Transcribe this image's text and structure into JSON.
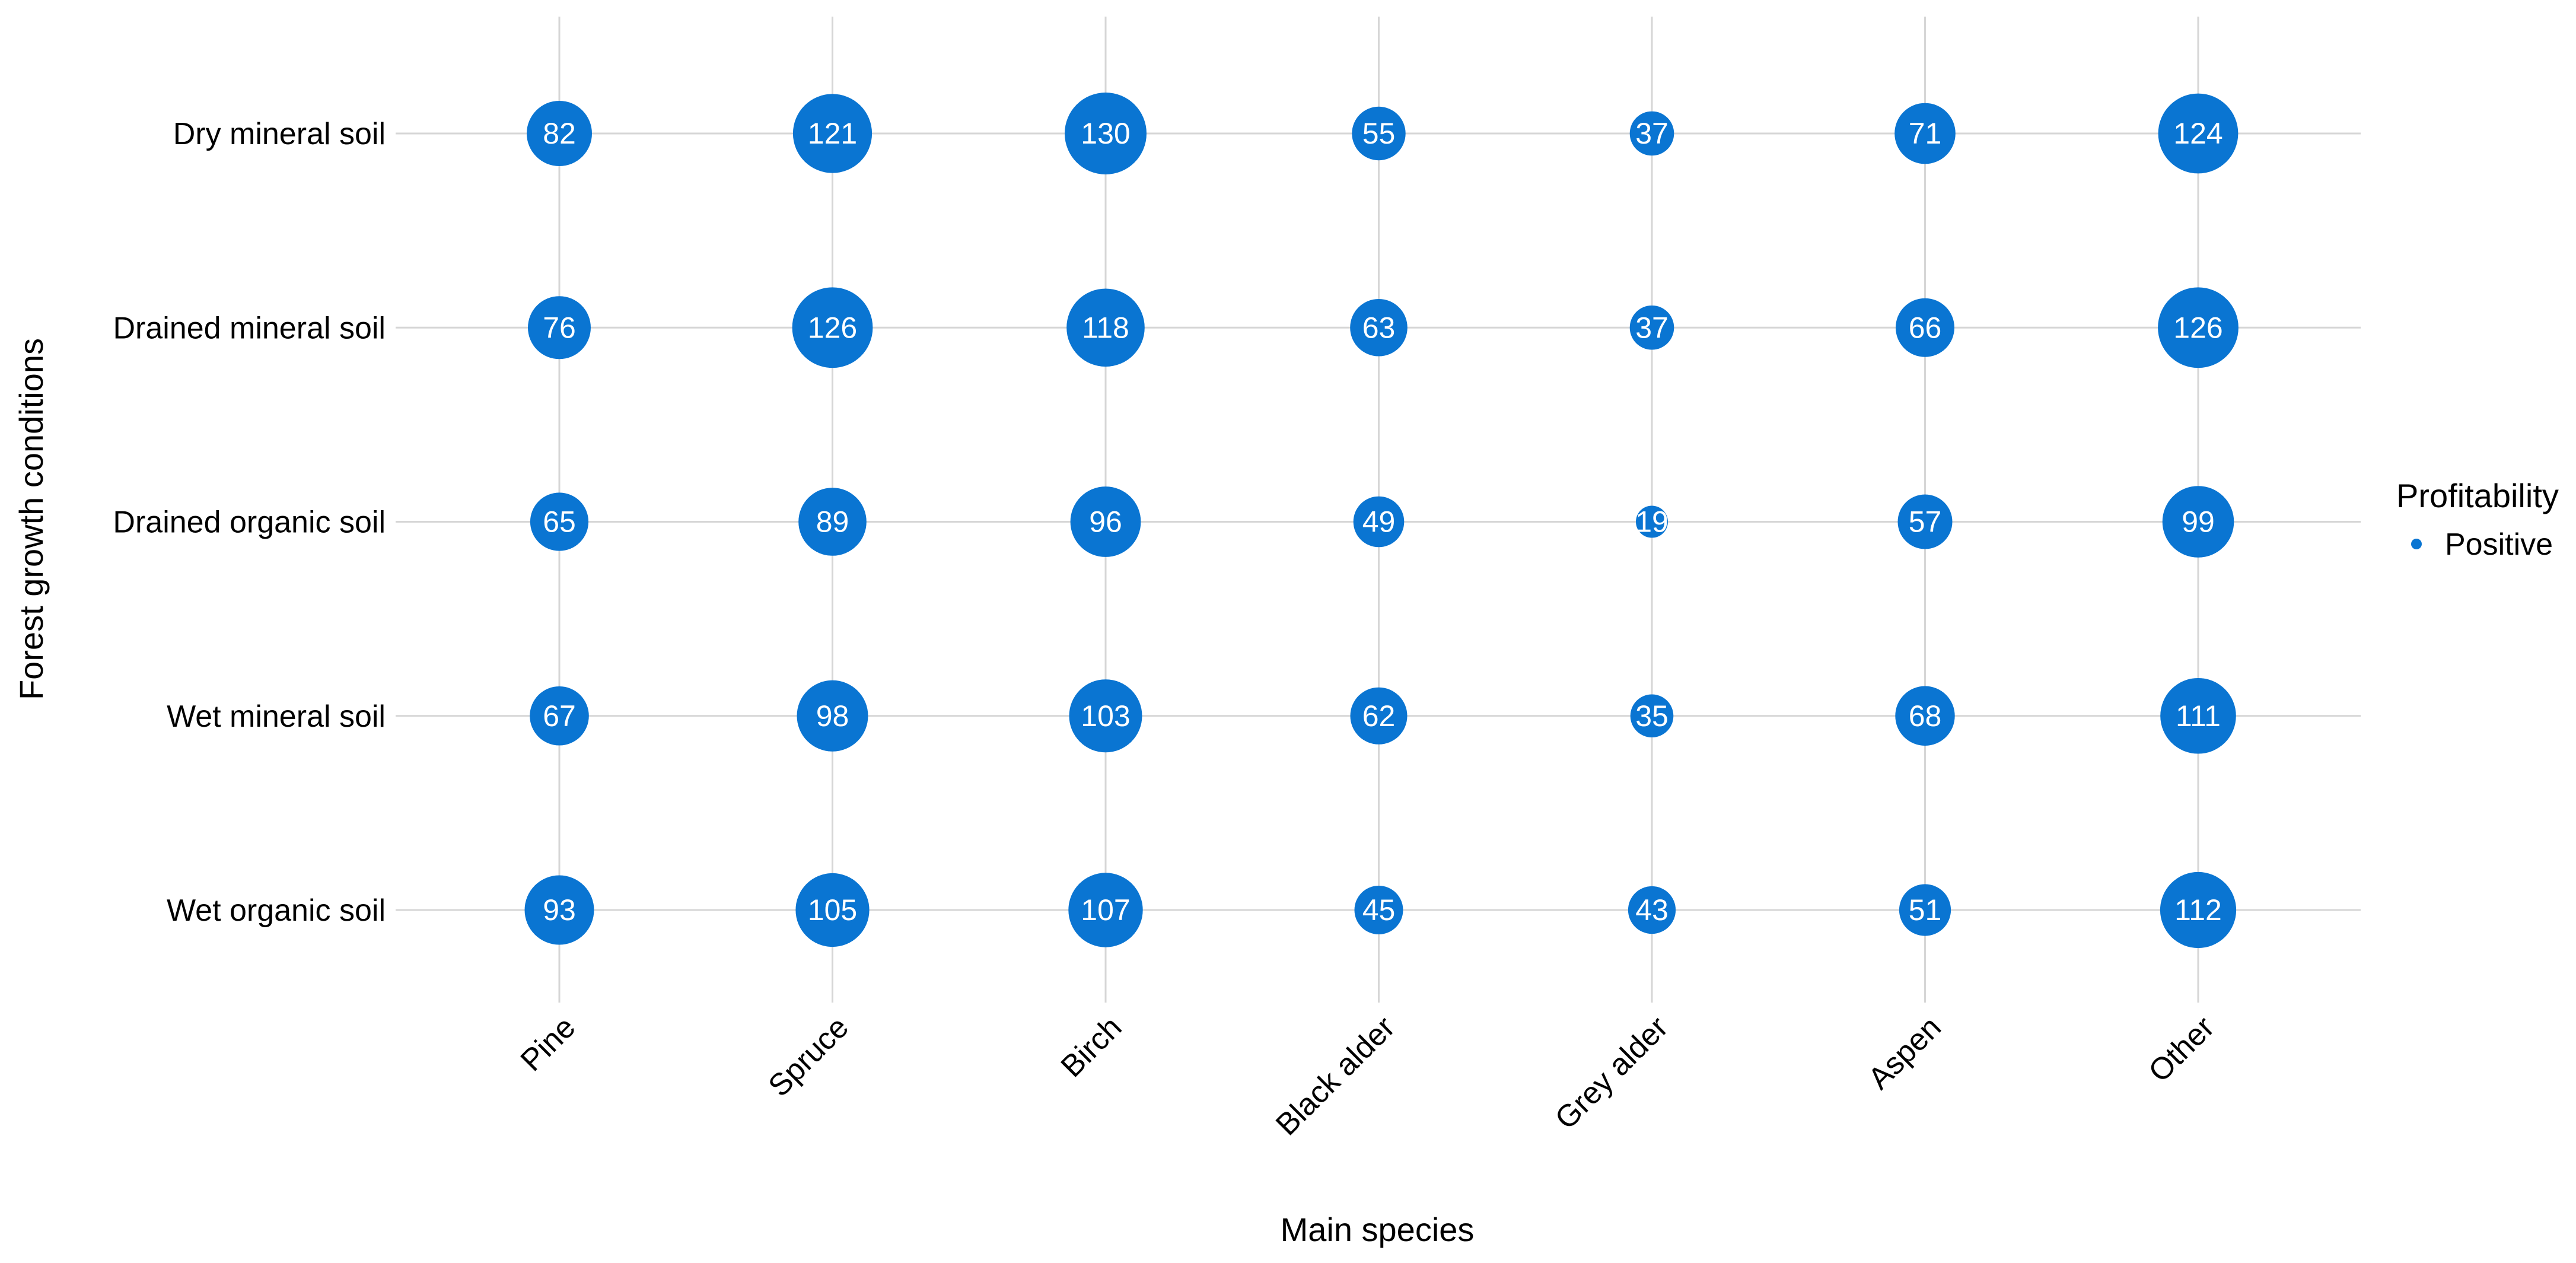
{
  "chart_data": {
    "type": "scatter",
    "title": "",
    "xlabel": "Main species",
    "ylabel": "Forest growth conditions",
    "x_categories": [
      "Pine",
      "Spruce",
      "Birch",
      "Black alder",
      "Grey alder",
      "Aspen",
      "Other"
    ],
    "y_categories": [
      "Dry mineral soil",
      "Drained mineral soil",
      "Drained organic soil",
      "Wet mineral soil",
      "Wet organic soil"
    ],
    "size_range": [
      19,
      130
    ],
    "grid": true,
    "legend": {
      "title": "Profitability",
      "position": "right",
      "items": [
        {
          "label": "Positive",
          "color": "#0a75d2"
        }
      ]
    },
    "series": [
      {
        "name": "Positive",
        "color": "#0a75d2",
        "points": [
          {
            "x": "Pine",
            "y": "Dry mineral soil",
            "value": 82
          },
          {
            "x": "Spruce",
            "y": "Dry mineral soil",
            "value": 121
          },
          {
            "x": "Birch",
            "y": "Dry mineral soil",
            "value": 130
          },
          {
            "x": "Black alder",
            "y": "Dry mineral soil",
            "value": 55
          },
          {
            "x": "Grey alder",
            "y": "Dry mineral soil",
            "value": 37
          },
          {
            "x": "Aspen",
            "y": "Dry mineral soil",
            "value": 71
          },
          {
            "x": "Other",
            "y": "Dry mineral soil",
            "value": 124
          },
          {
            "x": "Pine",
            "y": "Drained mineral soil",
            "value": 76
          },
          {
            "x": "Spruce",
            "y": "Drained mineral soil",
            "value": 126
          },
          {
            "x": "Birch",
            "y": "Drained mineral soil",
            "value": 118
          },
          {
            "x": "Black alder",
            "y": "Drained mineral soil",
            "value": 63
          },
          {
            "x": "Grey alder",
            "y": "Drained mineral soil",
            "value": 37
          },
          {
            "x": "Aspen",
            "y": "Drained mineral soil",
            "value": 66
          },
          {
            "x": "Other",
            "y": "Drained mineral soil",
            "value": 126
          },
          {
            "x": "Pine",
            "y": "Drained organic soil",
            "value": 65
          },
          {
            "x": "Spruce",
            "y": "Drained organic soil",
            "value": 89
          },
          {
            "x": "Birch",
            "y": "Drained organic soil",
            "value": 96
          },
          {
            "x": "Black alder",
            "y": "Drained organic soil",
            "value": 49
          },
          {
            "x": "Grey alder",
            "y": "Drained organic soil",
            "value": 19
          },
          {
            "x": "Aspen",
            "y": "Drained organic soil",
            "value": 57
          },
          {
            "x": "Other",
            "y": "Drained organic soil",
            "value": 99
          },
          {
            "x": "Pine",
            "y": "Wet mineral soil",
            "value": 67
          },
          {
            "x": "Spruce",
            "y": "Wet mineral soil",
            "value": 98
          },
          {
            "x": "Birch",
            "y": "Wet mineral soil",
            "value": 103
          },
          {
            "x": "Black alder",
            "y": "Wet mineral soil",
            "value": 62
          },
          {
            "x": "Grey alder",
            "y": "Wet mineral soil",
            "value": 35
          },
          {
            "x": "Aspen",
            "y": "Wet mineral soil",
            "value": 68
          },
          {
            "x": "Other",
            "y": "Wet mineral soil",
            "value": 111
          },
          {
            "x": "Pine",
            "y": "Wet organic soil",
            "value": 93
          },
          {
            "x": "Spruce",
            "y": "Wet organic soil",
            "value": 105
          },
          {
            "x": "Birch",
            "y": "Wet organic soil",
            "value": 107
          },
          {
            "x": "Black alder",
            "y": "Wet organic soil",
            "value": 45
          },
          {
            "x": "Grey alder",
            "y": "Wet organic soil",
            "value": 43
          },
          {
            "x": "Aspen",
            "y": "Wet organic soil",
            "value": 51
          },
          {
            "x": "Other",
            "y": "Wet organic soil",
            "value": 112
          }
        ]
      }
    ]
  }
}
